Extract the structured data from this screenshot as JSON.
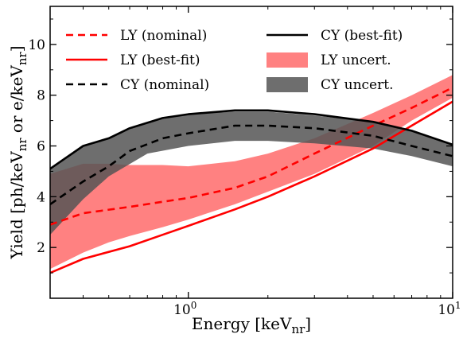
{
  "chart_data": {
    "type": "line",
    "xlabel": "Energy [keV",
    "xlabel_sub": "nr",
    "xlabel_suffix": "]",
    "ylabel_parts": [
      {
        "t": "Yield [ph/keV"
      },
      {
        "t": "nr",
        "sub": true
      },
      {
        "t": " or e/keV"
      },
      {
        "t": "nr",
        "sub": true
      },
      {
        "t": "]"
      }
    ],
    "x_scale": "log",
    "xlim": [
      0.3,
      10
    ],
    "ylim": [
      0,
      11.5
    ],
    "x_ticks": [
      {
        "value": 1,
        "base": "10",
        "exp": "0"
      },
      {
        "value": 10,
        "base": "10",
        "exp": "1"
      }
    ],
    "y_ticks": [
      2,
      4,
      6,
      8,
      10
    ],
    "y_tick_labels": [
      "2",
      "4",
      "6",
      "8",
      "10"
    ],
    "grid": false,
    "legend_position": "top",
    "bands": [
      {
        "name": "LY uncert.",
        "color": "#ff6b6b",
        "opacity": 0.85,
        "x": [
          0.3,
          0.4,
          0.5,
          0.6,
          0.8,
          1.0,
          1.5,
          2.0,
          3.0,
          5.0,
          7.0,
          10.0
        ],
        "lower": [
          1.15,
          1.8,
          2.2,
          2.45,
          2.8,
          3.1,
          3.7,
          4.2,
          4.9,
          6.0,
          7.0,
          7.9
        ],
        "upper": [
          4.9,
          5.3,
          5.3,
          5.25,
          5.25,
          5.2,
          5.4,
          5.7,
          6.3,
          7.3,
          8.0,
          8.8
        ]
      },
      {
        "name": "CY uncert.",
        "color": "#555555",
        "opacity": 0.85,
        "x": [
          0.3,
          0.4,
          0.5,
          0.7,
          1.0,
          1.5,
          2.0,
          3.0,
          5.0,
          7.0,
          10.0
        ],
        "lower": [
          2.5,
          3.9,
          4.8,
          5.7,
          6.0,
          6.2,
          6.2,
          6.1,
          5.9,
          5.6,
          5.2
        ],
        "upper": [
          5.1,
          6.0,
          6.3,
          6.95,
          7.25,
          7.35,
          7.35,
          7.2,
          6.95,
          6.6,
          6.05
        ]
      }
    ],
    "series": [
      {
        "name": "LY (nominal)",
        "color": "#ff0000",
        "dash": true,
        "x": [
          0.3,
          0.4,
          0.6,
          0.8,
          1.0,
          1.5,
          2.0,
          3.0,
          5.0,
          7.0,
          10.0
        ],
        "y": [
          2.9,
          3.35,
          3.6,
          3.8,
          3.95,
          4.35,
          4.8,
          5.7,
          6.8,
          7.5,
          8.3
        ]
      },
      {
        "name": "LY (best-fit)",
        "color": "#ff0000",
        "dash": false,
        "x": [
          0.3,
          0.4,
          0.6,
          0.8,
          1.0,
          1.5,
          2.0,
          3.0,
          5.0,
          7.0,
          10.0
        ],
        "y": [
          1.0,
          1.55,
          2.05,
          2.5,
          2.85,
          3.5,
          4.0,
          4.8,
          5.9,
          6.8,
          7.75
        ]
      },
      {
        "name": "CY (nominal)",
        "color": "#000000",
        "dash": true,
        "x": [
          0.3,
          0.4,
          0.5,
          0.6,
          0.8,
          1.0,
          1.5,
          2.0,
          3.0,
          5.0,
          7.0,
          10.0
        ],
        "y": [
          3.7,
          4.6,
          5.2,
          5.8,
          6.3,
          6.5,
          6.8,
          6.8,
          6.7,
          6.4,
          6.0,
          5.6
        ]
      },
      {
        "name": "CY (best-fit)",
        "color": "#000000",
        "dash": false,
        "x": [
          0.3,
          0.4,
          0.5,
          0.6,
          0.8,
          1.0,
          1.5,
          2.0,
          3.0,
          5.0,
          7.0,
          10.0
        ],
        "y": [
          5.1,
          6.0,
          6.3,
          6.7,
          7.1,
          7.25,
          7.4,
          7.4,
          7.25,
          6.95,
          6.6,
          6.05
        ]
      }
    ],
    "legend": {
      "columns": [
        [
          "LY (nominal)",
          "LY (best-fit)",
          "CY (nominal)"
        ],
        [
          "CY (best-fit)",
          "LY uncert.",
          "CY uncert."
        ]
      ]
    }
  }
}
